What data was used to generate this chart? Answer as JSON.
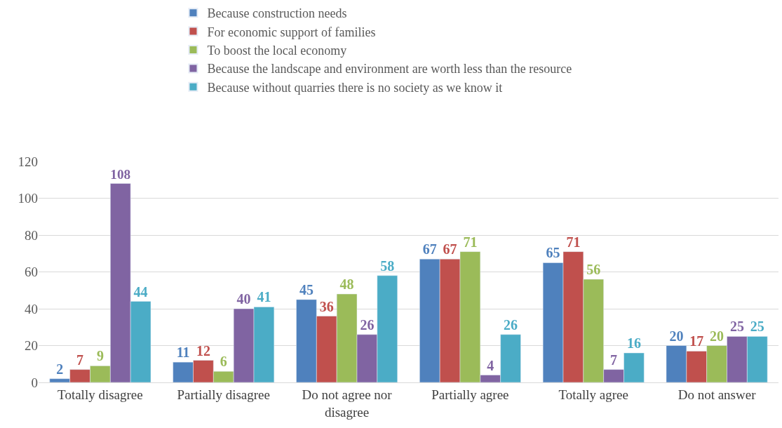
{
  "chart_data": {
    "type": "bar",
    "categories": [
      "Totally disagree",
      "Partially disagree",
      "Do not agree nor disagree",
      "Partially agree",
      "Totally agree",
      "Do not answer"
    ],
    "series": [
      {
        "name": "Because construction needs",
        "color": "#4f81bd",
        "values": [
          2,
          11,
          45,
          67,
          65,
          20
        ]
      },
      {
        "name": "For economic support of families",
        "color": "#c0504d",
        "values": [
          7,
          12,
          36,
          67,
          71,
          17
        ]
      },
      {
        "name": "To boost the local economy",
        "color": "#9bbb59",
        "values": [
          9,
          6,
          48,
          71,
          56,
          20
        ]
      },
      {
        "name": "Because the landscape and environment are worth less than the resource",
        "color": "#8064a2",
        "values": [
          108,
          40,
          26,
          4,
          7,
          25
        ]
      },
      {
        "name": "Because without quarries there is no society as we know it",
        "color": "#4bacc6",
        "values": [
          44,
          41,
          58,
          26,
          16,
          25
        ]
      }
    ],
    "ylim": [
      0,
      120
    ],
    "yticks": [
      0,
      20,
      40,
      60,
      80,
      100,
      120
    ],
    "grid": "y",
    "legend": "top",
    "data_labels": true
  }
}
